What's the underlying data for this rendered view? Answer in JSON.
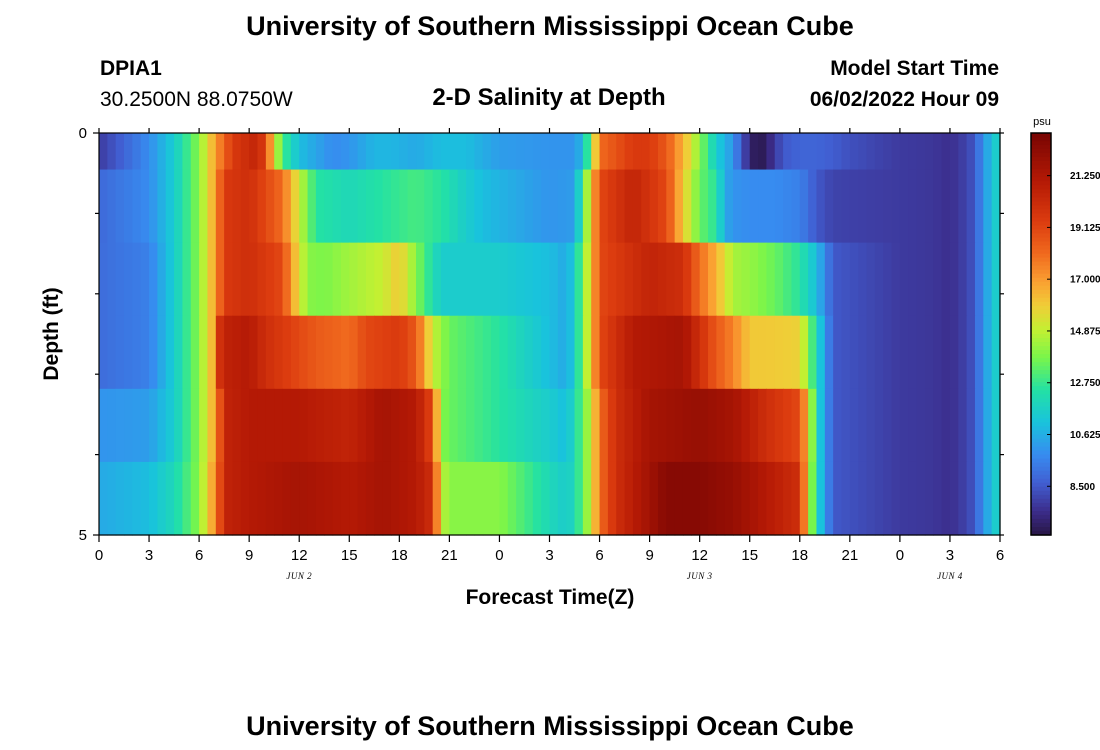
{
  "header": {
    "title": "University of Southern Mississippi Ocean Cube",
    "station": "DPIA1",
    "coordinates": "30.2500N  88.0750W",
    "subtitle": "2-D Salinity at Depth",
    "start_label": "Model Start Time",
    "start_value": "06/02/2022 Hour 09"
  },
  "footer": {
    "title": "University of Southern Mississippi Ocean Cube"
  },
  "chart_data": {
    "type": "heatmap",
    "title": "2-D Salinity at Depth",
    "xlabel": "Forecast Time(Z)",
    "ylabel": "Depth (ft)",
    "x_tick_labels": [
      "0",
      "3",
      "6",
      "9",
      "12",
      "15",
      "18",
      "21",
      "0",
      "3",
      "6",
      "9",
      "12",
      "15",
      "18",
      "21",
      "0",
      "3",
      "6"
    ],
    "date_labels": [
      {
        "text": "JUN 2",
        "hour": 12
      },
      {
        "text": "JUN 3",
        "hour": 36
      },
      {
        "text": "JUN 4",
        "hour": 51
      }
    ],
    "xlim_hours": [
      0,
      54
    ],
    "y_tick_labels": [
      "0",
      "5"
    ],
    "ylim_ft": [
      0,
      5
    ],
    "colorbar": {
      "unit": "psu",
      "min": 6.5,
      "max": 23.0,
      "tick_values": [
        8.5,
        10.625,
        12.75,
        14.875,
        17.0,
        19.125,
        21.25
      ],
      "tick_labels": [
        "8.500",
        "10.625",
        "12.750",
        "14.875",
        "17.000",
        "19.125",
        "21.250"
      ]
    },
    "rows": [
      {
        "depth_ft": 0,
        "knots": [
          [
            0,
            7.8
          ],
          [
            3,
            9.8
          ],
          [
            4.5,
            11.5
          ],
          [
            6,
            14
          ],
          [
            7,
            17
          ],
          [
            8,
            19.5
          ],
          [
            9.5,
            20.5
          ],
          [
            10,
            19
          ],
          [
            10.5,
            15.5
          ],
          [
            11,
            13
          ],
          [
            12,
            11
          ],
          [
            13,
            10.4
          ],
          [
            14,
            9.8
          ],
          [
            15,
            10
          ],
          [
            16.5,
            10.8
          ],
          [
            17.5,
            10.8
          ],
          [
            19,
            10.5
          ],
          [
            20.5,
            11
          ],
          [
            22,
            11
          ],
          [
            24,
            10.2
          ],
          [
            27,
            10
          ],
          [
            28.5,
            10
          ],
          [
            29,
            11
          ],
          [
            29.5,
            14
          ],
          [
            30,
            18
          ],
          [
            32,
            19.5
          ],
          [
            33,
            19.5
          ],
          [
            34,
            18.5
          ],
          [
            35,
            16.5
          ],
          [
            36,
            14
          ],
          [
            37,
            11.5
          ],
          [
            38,
            10
          ],
          [
            38.5,
            8.5
          ],
          [
            39,
            7.2
          ],
          [
            39.5,
            6.5
          ],
          [
            40,
            7
          ],
          [
            41,
            8.5
          ],
          [
            42,
            8.8
          ],
          [
            43,
            8.8
          ],
          [
            44,
            8.6
          ],
          [
            45,
            8.3
          ],
          [
            48,
            7.8
          ],
          [
            50,
            7.7
          ],
          [
            51,
            7.5
          ],
          [
            52,
            8
          ],
          [
            52.5,
            8.5
          ],
          [
            53,
            10
          ],
          [
            53.5,
            11
          ],
          [
            54,
            12
          ]
        ]
      },
      {
        "depth_ft": 1,
        "knots": [
          [
            0,
            8.9
          ],
          [
            3,
            9.8
          ],
          [
            4.5,
            11.5
          ],
          [
            6,
            14
          ],
          [
            7,
            17
          ],
          [
            7.5,
            19.5
          ],
          [
            9,
            20
          ],
          [
            11,
            18
          ],
          [
            12,
            15
          ],
          [
            13,
            12.5
          ],
          [
            15,
            12
          ],
          [
            17,
            12.5
          ],
          [
            19,
            13
          ],
          [
            20.5,
            12.5
          ],
          [
            22,
            11.5
          ],
          [
            23,
            11
          ],
          [
            25,
            10.5
          ],
          [
            27,
            10
          ],
          [
            28.5,
            10.2
          ],
          [
            29,
            13
          ],
          [
            29.5,
            16
          ],
          [
            30,
            19
          ],
          [
            32,
            20.5
          ],
          [
            34,
            19
          ],
          [
            35,
            16
          ],
          [
            36,
            13.5
          ],
          [
            37,
            12.5
          ],
          [
            37.5,
            10.5
          ],
          [
            38,
            10
          ],
          [
            39,
            9.8
          ],
          [
            40.5,
            9.8
          ],
          [
            42,
            9.5
          ],
          [
            43,
            8.5
          ],
          [
            44,
            8
          ],
          [
            48,
            7.8
          ],
          [
            50,
            7.7
          ],
          [
            51,
            7.5
          ],
          [
            52,
            8
          ],
          [
            52.5,
            8.5
          ],
          [
            53,
            10
          ],
          [
            53.5,
            11
          ],
          [
            54,
            12
          ]
        ]
      },
      {
        "depth_ft": 2,
        "knots": [
          [
            0,
            9
          ],
          [
            3,
            9.5
          ],
          [
            4.5,
            11.5
          ],
          [
            6,
            14
          ],
          [
            7,
            17
          ],
          [
            7.5,
            19.5
          ],
          [
            9,
            20
          ],
          [
            11,
            19
          ],
          [
            11.5,
            17
          ],
          [
            12.5,
            14
          ],
          [
            13.5,
            13.8
          ],
          [
            15,
            14.4
          ],
          [
            17,
            15
          ],
          [
            18,
            16
          ],
          [
            18.5,
            15
          ],
          [
            19.5,
            13
          ],
          [
            20.5,
            11.5
          ],
          [
            24,
            11.5
          ],
          [
            27,
            11
          ],
          [
            28,
            10.5
          ],
          [
            28.5,
            11.5
          ],
          [
            29.5,
            16
          ],
          [
            30,
            19
          ],
          [
            31,
            19.5
          ],
          [
            33,
            20.5
          ],
          [
            35,
            20
          ],
          [
            36,
            18
          ],
          [
            37,
            16.5
          ],
          [
            38,
            14.5
          ],
          [
            39,
            14.2
          ],
          [
            40.5,
            13.5
          ],
          [
            42,
            12.5
          ],
          [
            43,
            11
          ],
          [
            44,
            8.5
          ],
          [
            48,
            7.8
          ],
          [
            50,
            7.7
          ],
          [
            51,
            7.5
          ],
          [
            52,
            8
          ],
          [
            52.5,
            8.5
          ],
          [
            53,
            10
          ],
          [
            53.5,
            11
          ],
          [
            54,
            12
          ]
        ]
      },
      {
        "depth_ft": 3,
        "knots": [
          [
            0,
            9
          ],
          [
            3,
            9.5
          ],
          [
            4.5,
            11.5
          ],
          [
            6,
            14
          ],
          [
            7,
            17
          ],
          [
            7.3,
            20.5
          ],
          [
            9,
            21
          ],
          [
            10,
            20
          ],
          [
            11,
            19.5
          ],
          [
            12,
            19
          ],
          [
            13,
            18.5
          ],
          [
            15,
            18
          ],
          [
            16,
            19
          ],
          [
            18,
            19.5
          ],
          [
            19,
            18.5
          ],
          [
            20,
            15
          ],
          [
            21,
            13.5
          ],
          [
            24,
            12.5
          ],
          [
            27,
            11
          ],
          [
            28,
            10.5
          ],
          [
            28.5,
            11.5
          ],
          [
            29.5,
            16
          ],
          [
            30,
            19
          ],
          [
            31,
            20
          ],
          [
            32,
            21
          ],
          [
            35,
            21.5
          ],
          [
            36,
            20
          ],
          [
            37,
            18.5
          ],
          [
            38,
            17.5
          ],
          [
            39,
            16
          ],
          [
            40,
            16
          ],
          [
            42,
            15.8
          ],
          [
            42.5,
            14
          ],
          [
            43,
            12
          ],
          [
            44,
            8.5
          ],
          [
            48,
            7.8
          ],
          [
            50,
            7.7
          ],
          [
            51,
            7.5
          ],
          [
            52,
            8
          ],
          [
            52.5,
            8.5
          ],
          [
            53,
            10
          ],
          [
            53.5,
            11
          ],
          [
            54,
            12
          ]
        ]
      },
      {
        "depth_ft": 4,
        "knots": [
          [
            0,
            10
          ],
          [
            3,
            10.2
          ],
          [
            4.5,
            11.5
          ],
          [
            6,
            14
          ],
          [
            7,
            17
          ],
          [
            7.5,
            20.5
          ],
          [
            9,
            21
          ],
          [
            12,
            21
          ],
          [
            15,
            20.5
          ],
          [
            17,
            21.5
          ],
          [
            19,
            21
          ],
          [
            20,
            19
          ],
          [
            20.5,
            14
          ],
          [
            21,
            13.5
          ],
          [
            24,
            12.5
          ],
          [
            27,
            11.5
          ],
          [
            28,
            11
          ],
          [
            28.5,
            12
          ],
          [
            29.5,
            15
          ],
          [
            30,
            18
          ],
          [
            31,
            20
          ],
          [
            33,
            21.5
          ],
          [
            36,
            22
          ],
          [
            38,
            21.5
          ],
          [
            40,
            20
          ],
          [
            42,
            19
          ],
          [
            42.5,
            16
          ],
          [
            43,
            12
          ],
          [
            44,
            8.5
          ],
          [
            48,
            7.8
          ],
          [
            50,
            7.7
          ],
          [
            51,
            7.5
          ],
          [
            52,
            8
          ],
          [
            52.5,
            8.5
          ],
          [
            53,
            10
          ],
          [
            53.5,
            11
          ],
          [
            54,
            12
          ]
        ]
      },
      {
        "depth_ft": 5,
        "knots": [
          [
            0,
            10.5
          ],
          [
            3,
            11
          ],
          [
            4.5,
            12
          ],
          [
            6,
            14
          ],
          [
            7,
            17.5
          ],
          [
            7.5,
            20.5
          ],
          [
            9,
            21
          ],
          [
            12,
            21.5
          ],
          [
            15,
            21
          ],
          [
            17,
            21.5
          ],
          [
            19,
            21
          ],
          [
            20,
            20
          ],
          [
            20.5,
            15
          ],
          [
            21,
            14
          ],
          [
            24,
            14
          ],
          [
            27,
            12
          ],
          [
            28,
            11.5
          ],
          [
            28.5,
            12
          ],
          [
            29.5,
            15
          ],
          [
            30,
            18
          ],
          [
            31,
            20
          ],
          [
            34,
            22.5
          ],
          [
            36,
            22.5
          ],
          [
            38,
            22
          ],
          [
            40,
            21
          ],
          [
            42,
            20
          ],
          [
            42.5,
            15.5
          ],
          [
            43,
            12
          ],
          [
            44,
            8.5
          ],
          [
            48,
            7.8
          ],
          [
            50,
            7.7
          ],
          [
            51,
            7.5
          ],
          [
            52,
            8
          ],
          [
            52.5,
            8.5
          ],
          [
            53,
            10
          ],
          [
            53.5,
            11
          ],
          [
            54,
            12
          ]
        ]
      }
    ]
  }
}
